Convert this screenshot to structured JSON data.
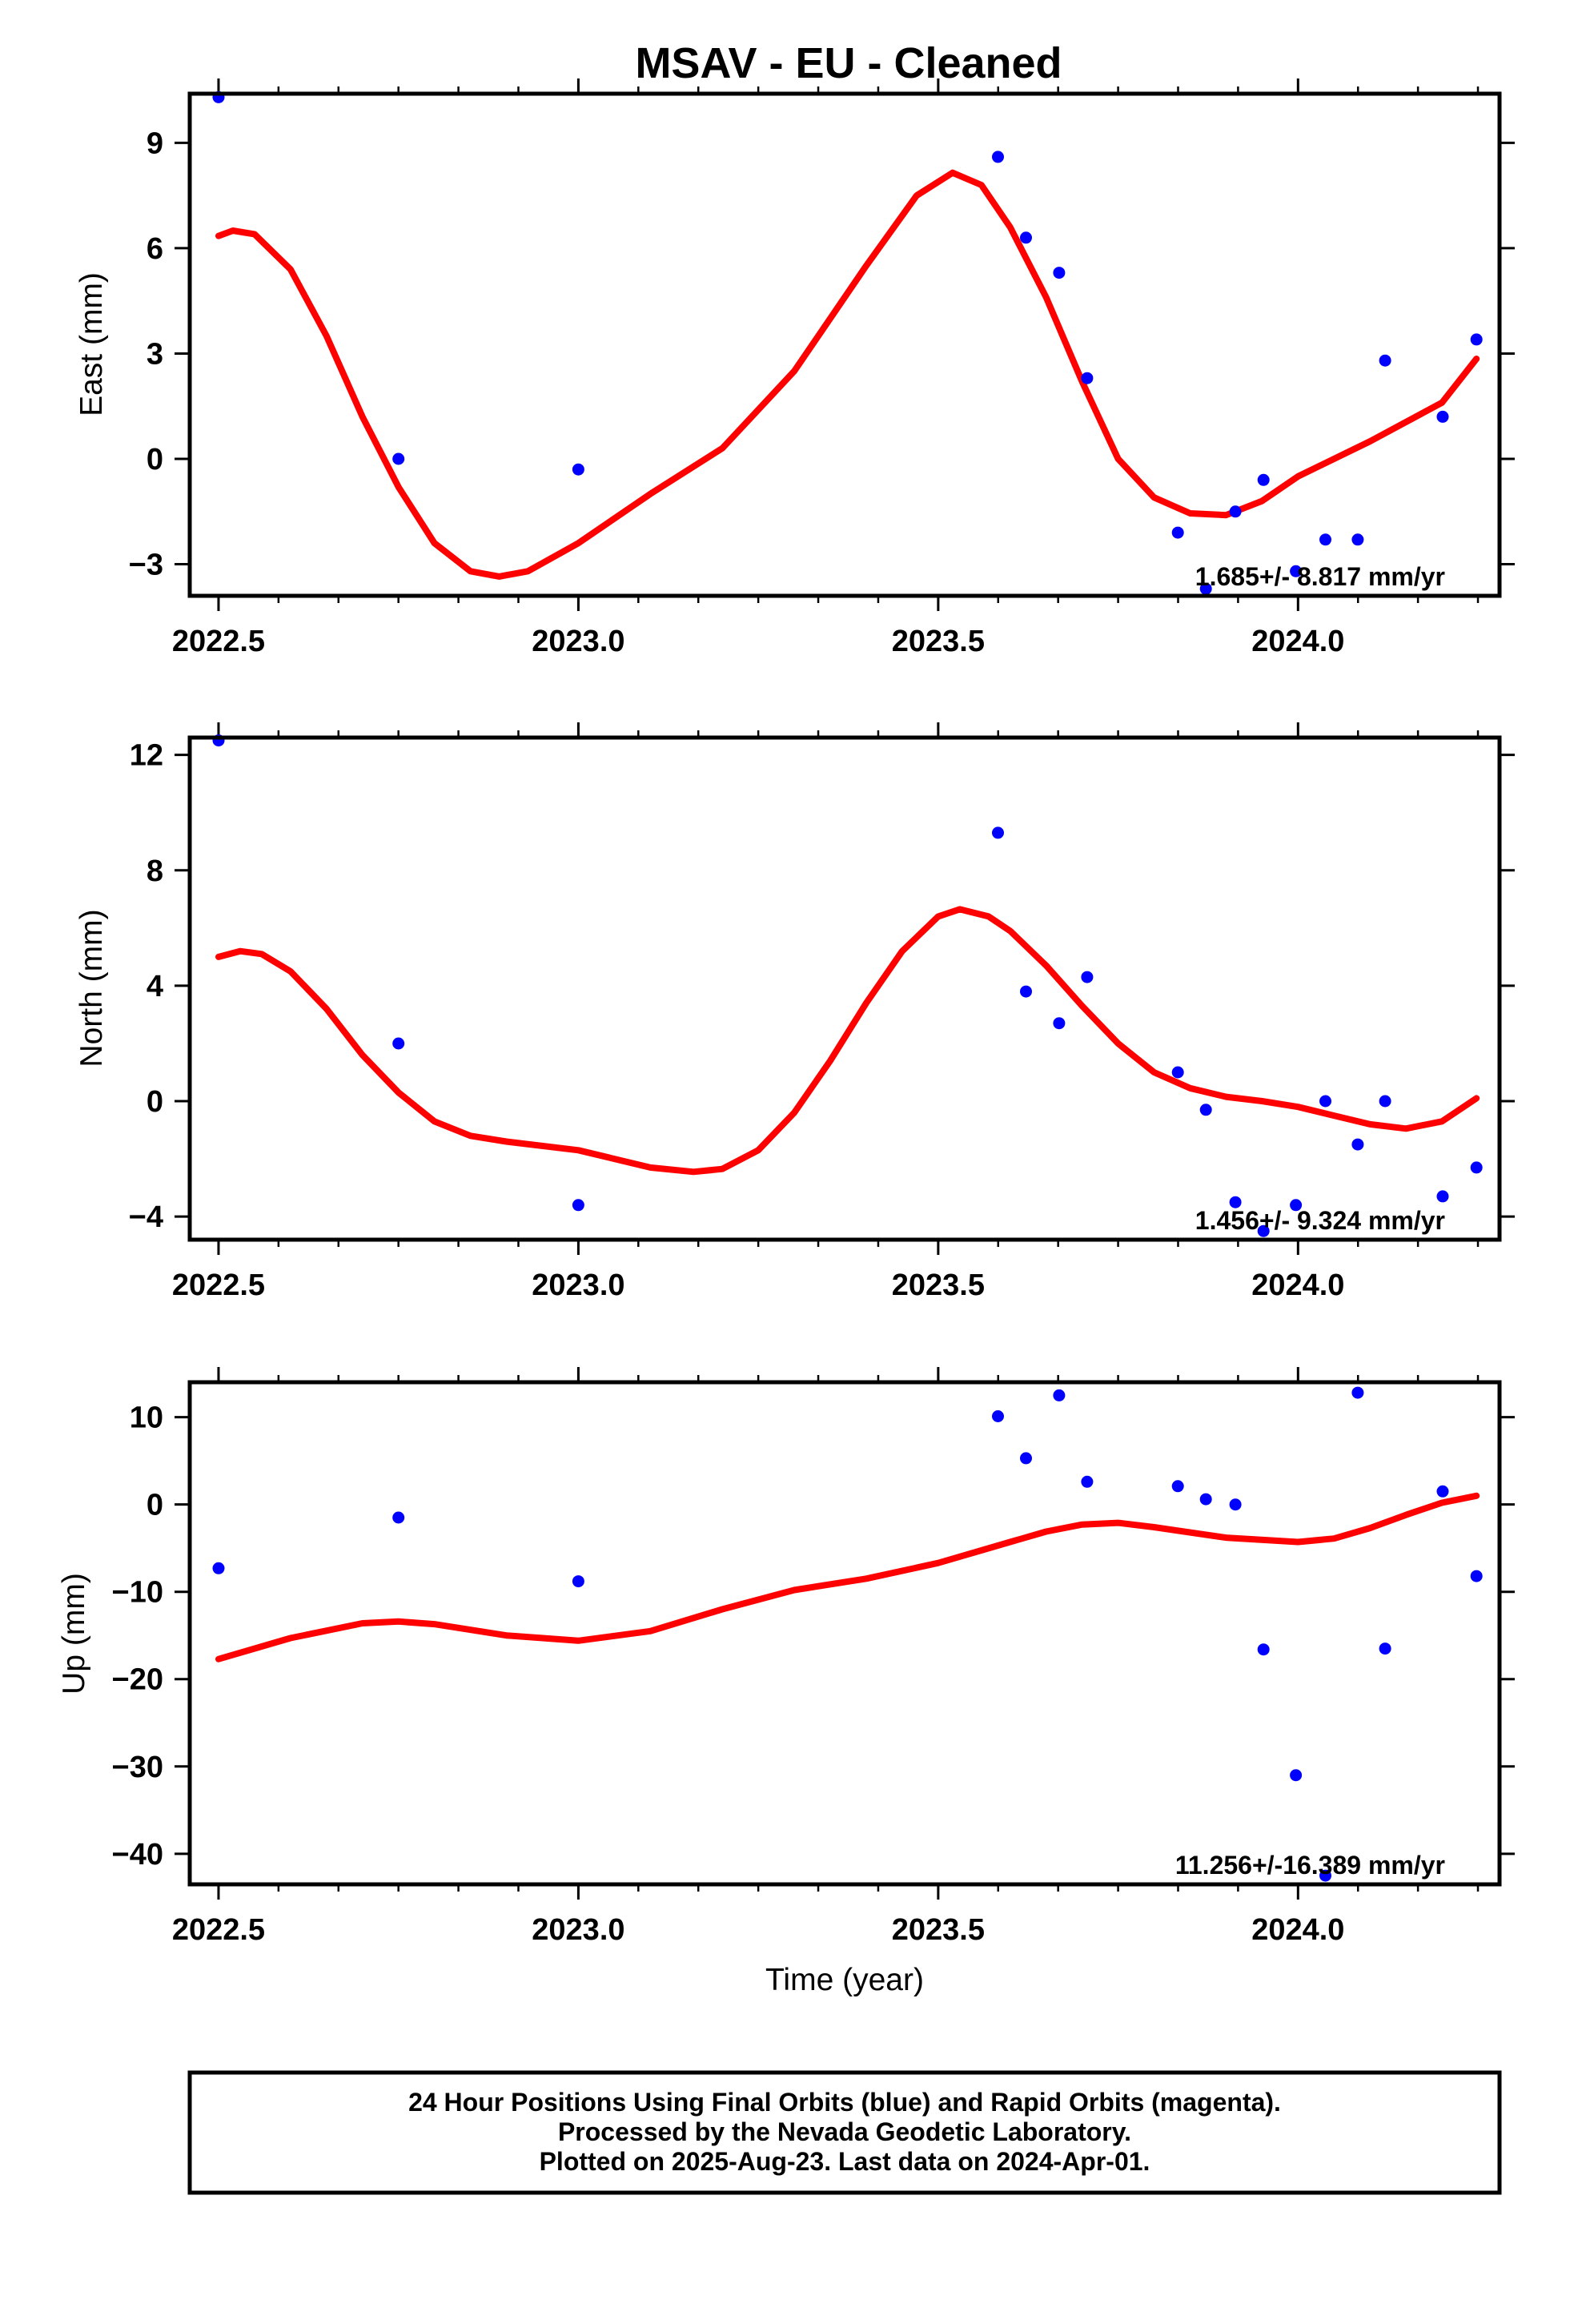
{
  "title": "MSAV  - EU - Cleaned",
  "xlabel": "Time (year)",
  "footer": [
    "24 Hour Positions Using Final Orbits (blue) and Rapid Orbits (magenta).",
    "Processed by the Nevada Geodetic Laboratory.",
    "Plotted on 2025-Aug-23. Last data on 2024-Apr-01."
  ],
  "colors": {
    "points": "#0000ff",
    "fit": "#ff0000",
    "frame": "#000000"
  },
  "chart_data": [
    {
      "type": "scatter",
      "ylabel": "East (mm)",
      "rate_label": "1.685+/- 8.817 mm/yr",
      "xlim": [
        2022.46,
        2024.28
      ],
      "ylim": [
        -3.9,
        10.4
      ],
      "xticks": [
        2022.5,
        2023.0,
        2023.5,
        2024.0
      ],
      "xtick_labels": [
        "2022.5",
        "2023.0",
        "2023.5",
        "2024.0"
      ],
      "yticks": [
        -3,
        0,
        3,
        6,
        9
      ],
      "ytick_labels": [
        "−3",
        "0",
        "3",
        "6",
        "9"
      ],
      "grid": false,
      "series": [
        {
          "kind": "points",
          "x": [
            2022.5,
            2022.75,
            2023.0,
            2023.583,
            2023.622,
            2023.668,
            2023.707,
            2023.833,
            2023.872,
            2023.913,
            2023.952,
            2023.997,
            2024.038,
            2024.083,
            2024.121,
            2024.201,
            2024.248
          ],
          "y": [
            10.3,
            0.0,
            -0.3,
            8.6,
            6.3,
            5.3,
            2.3,
            -2.1,
            -3.7,
            -1.5,
            -0.6,
            -3.2,
            -2.3,
            -2.3,
            2.8,
            1.2,
            3.4
          ]
        },
        {
          "kind": "fit",
          "x": [
            2022.5,
            2022.52,
            2022.55,
            2022.6,
            2022.65,
            2022.7,
            2022.75,
            2022.8,
            2022.85,
            2022.89,
            2022.93,
            2023.0,
            2023.1,
            2023.2,
            2023.3,
            2023.4,
            2023.47,
            2023.52,
            2023.56,
            2023.6,
            2023.65,
            2023.7,
            2023.75,
            2023.8,
            2023.85,
            2023.9,
            2023.95,
            2024.0,
            2024.1,
            2024.2,
            2024.248
          ],
          "y": [
            6.35,
            6.5,
            6.4,
            5.4,
            3.5,
            1.2,
            -0.8,
            -2.4,
            -3.2,
            -3.35,
            -3.2,
            -2.4,
            -1.0,
            0.3,
            2.5,
            5.5,
            7.5,
            8.15,
            7.8,
            6.6,
            4.6,
            2.2,
            0.0,
            -1.1,
            -1.55,
            -1.6,
            -1.2,
            -0.5,
            0.5,
            1.6,
            2.85
          ]
        }
      ]
    },
    {
      "type": "scatter",
      "ylabel": "North (mm)",
      "rate_label": "1.456+/- 9.324 mm/yr",
      "xlim": [
        2022.46,
        2024.28
      ],
      "ylim": [
        -4.8,
        12.6
      ],
      "xticks": [
        2022.5,
        2023.0,
        2023.5,
        2024.0
      ],
      "xtick_labels": [
        "2022.5",
        "2023.0",
        "2023.5",
        "2024.0"
      ],
      "yticks": [
        -4,
        0,
        4,
        8,
        12
      ],
      "ytick_labels": [
        "−4",
        "0",
        "4",
        "8",
        "12"
      ],
      "grid": false,
      "series": [
        {
          "kind": "points",
          "x": [
            2022.5,
            2022.75,
            2023.0,
            2023.583,
            2023.622,
            2023.668,
            2023.707,
            2023.833,
            2023.872,
            2023.913,
            2023.952,
            2023.997,
            2024.038,
            2024.083,
            2024.121,
            2024.201,
            2024.248
          ],
          "y": [
            12.5,
            2.0,
            -3.6,
            9.3,
            3.8,
            2.7,
            4.3,
            1.0,
            -0.3,
            -3.5,
            -4.5,
            -3.6,
            0.0,
            -1.5,
            0.0,
            -3.3,
            -2.3
          ]
        },
        {
          "kind": "fit",
          "x": [
            2022.5,
            2022.53,
            2022.56,
            2022.6,
            2022.65,
            2022.7,
            2022.75,
            2022.8,
            2022.85,
            2022.9,
            2023.0,
            2023.05,
            2023.1,
            2023.16,
            2023.2,
            2023.25,
            2023.3,
            2023.35,
            2023.4,
            2023.45,
            2023.5,
            2023.53,
            2023.57,
            2023.6,
            2023.65,
            2023.7,
            2023.75,
            2023.8,
            2023.85,
            2023.9,
            2023.95,
            2024.0,
            2024.05,
            2024.1,
            2024.15,
            2024.2,
            2024.248
          ],
          "y": [
            5.0,
            5.2,
            5.1,
            4.5,
            3.2,
            1.6,
            0.3,
            -0.7,
            -1.2,
            -1.4,
            -1.7,
            -2.0,
            -2.3,
            -2.45,
            -2.35,
            -1.7,
            -0.4,
            1.4,
            3.4,
            5.2,
            6.4,
            6.65,
            6.4,
            5.9,
            4.7,
            3.3,
            2.0,
            1.0,
            0.45,
            0.15,
            0.0,
            -0.2,
            -0.5,
            -0.8,
            -0.95,
            -0.7,
            0.1
          ]
        }
      ]
    },
    {
      "type": "scatter",
      "ylabel": "Up (mm)",
      "rate_label": "11.256+/-16.389 mm/yr",
      "xlim": [
        2022.46,
        2024.28
      ],
      "ylim": [
        -43.5,
        14
      ],
      "xticks": [
        2022.5,
        2023.0,
        2023.5,
        2024.0
      ],
      "xtick_labels": [
        "2022.5",
        "2023.0",
        "2023.5",
        "2024.0"
      ],
      "yticks": [
        -40,
        -30,
        -20,
        -10,
        0,
        10
      ],
      "ytick_labels": [
        "−40",
        "−30",
        "−20",
        "−10",
        "0",
        "10"
      ],
      "grid": false,
      "series": [
        {
          "kind": "points",
          "x": [
            2022.5,
            2022.75,
            2023.0,
            2023.583,
            2023.622,
            2023.668,
            2023.707,
            2023.833,
            2023.872,
            2023.913,
            2023.952,
            2023.997,
            2024.038,
            2024.083,
            2024.121,
            2024.201,
            2024.248
          ],
          "y": [
            -7.3,
            -1.5,
            -8.8,
            10.1,
            5.3,
            12.5,
            2.6,
            2.1,
            0.6,
            0.0,
            -16.6,
            -31.0,
            -42.5,
            12.8,
            -16.5,
            1.5,
            -8.2
          ]
        },
        {
          "kind": "fit",
          "x": [
            2022.5,
            2022.6,
            2022.7,
            2022.75,
            2022.8,
            2022.9,
            2023.0,
            2023.1,
            2023.2,
            2023.3,
            2023.4,
            2023.5,
            2023.6,
            2023.65,
            2023.7,
            2023.75,
            2023.8,
            2023.9,
            2024.0,
            2024.05,
            2024.1,
            2024.15,
            2024.2,
            2024.248
          ],
          "y": [
            -17.7,
            -15.3,
            -13.6,
            -13.4,
            -13.7,
            -15.0,
            -15.6,
            -14.5,
            -12.0,
            -9.8,
            -8.5,
            -6.7,
            -4.3,
            -3.1,
            -2.3,
            -2.1,
            -2.6,
            -3.8,
            -4.3,
            -3.9,
            -2.7,
            -1.2,
            0.2,
            1.0
          ]
        }
      ]
    }
  ]
}
